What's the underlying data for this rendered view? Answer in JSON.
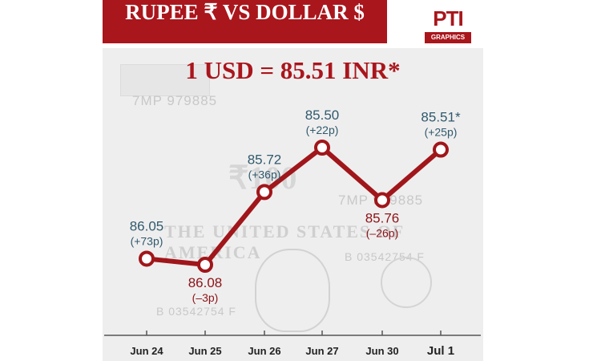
{
  "header": {
    "title": "RUPEE ₹   VS   DOLLAR $",
    "logo_main": "PTI",
    "logo_sub": "GRAPHICS"
  },
  "headline": "1 USD = 85.51 INR*",
  "colors": {
    "brand_red": "#a9161c",
    "line_red": "#a0161a",
    "teal_label": "#2f5a6e",
    "dark_red_label": "#8c1318"
  },
  "chart_data": {
    "type": "line",
    "title": "1 USD = 85.51 INR*",
    "categories": [
      "Jun 24",
      "Jun 25",
      "Jun 26",
      "Jun 27",
      "Jun 30",
      "Jul 1"
    ],
    "values": [
      86.05,
      86.08,
      85.72,
      85.5,
      85.76,
      85.51
    ],
    "value_labels": [
      "86.05",
      "86.08",
      "85.72",
      "85.50",
      "85.76",
      "85.51*"
    ],
    "change_labels": [
      "(+73p)",
      "(–3p)",
      "(+36p)",
      "(+22p)",
      "(–26p)",
      "(+25p)"
    ],
    "label_positions": [
      "above",
      "below",
      "above",
      "above",
      "below",
      "above"
    ],
    "label_colors": [
      "teal",
      "red",
      "teal",
      "teal",
      "red",
      "teal"
    ],
    "inverted_y": true,
    "ylim": [
      85.45,
      86.15
    ],
    "xlabel": "",
    "ylabel": "",
    "grid": false
  }
}
